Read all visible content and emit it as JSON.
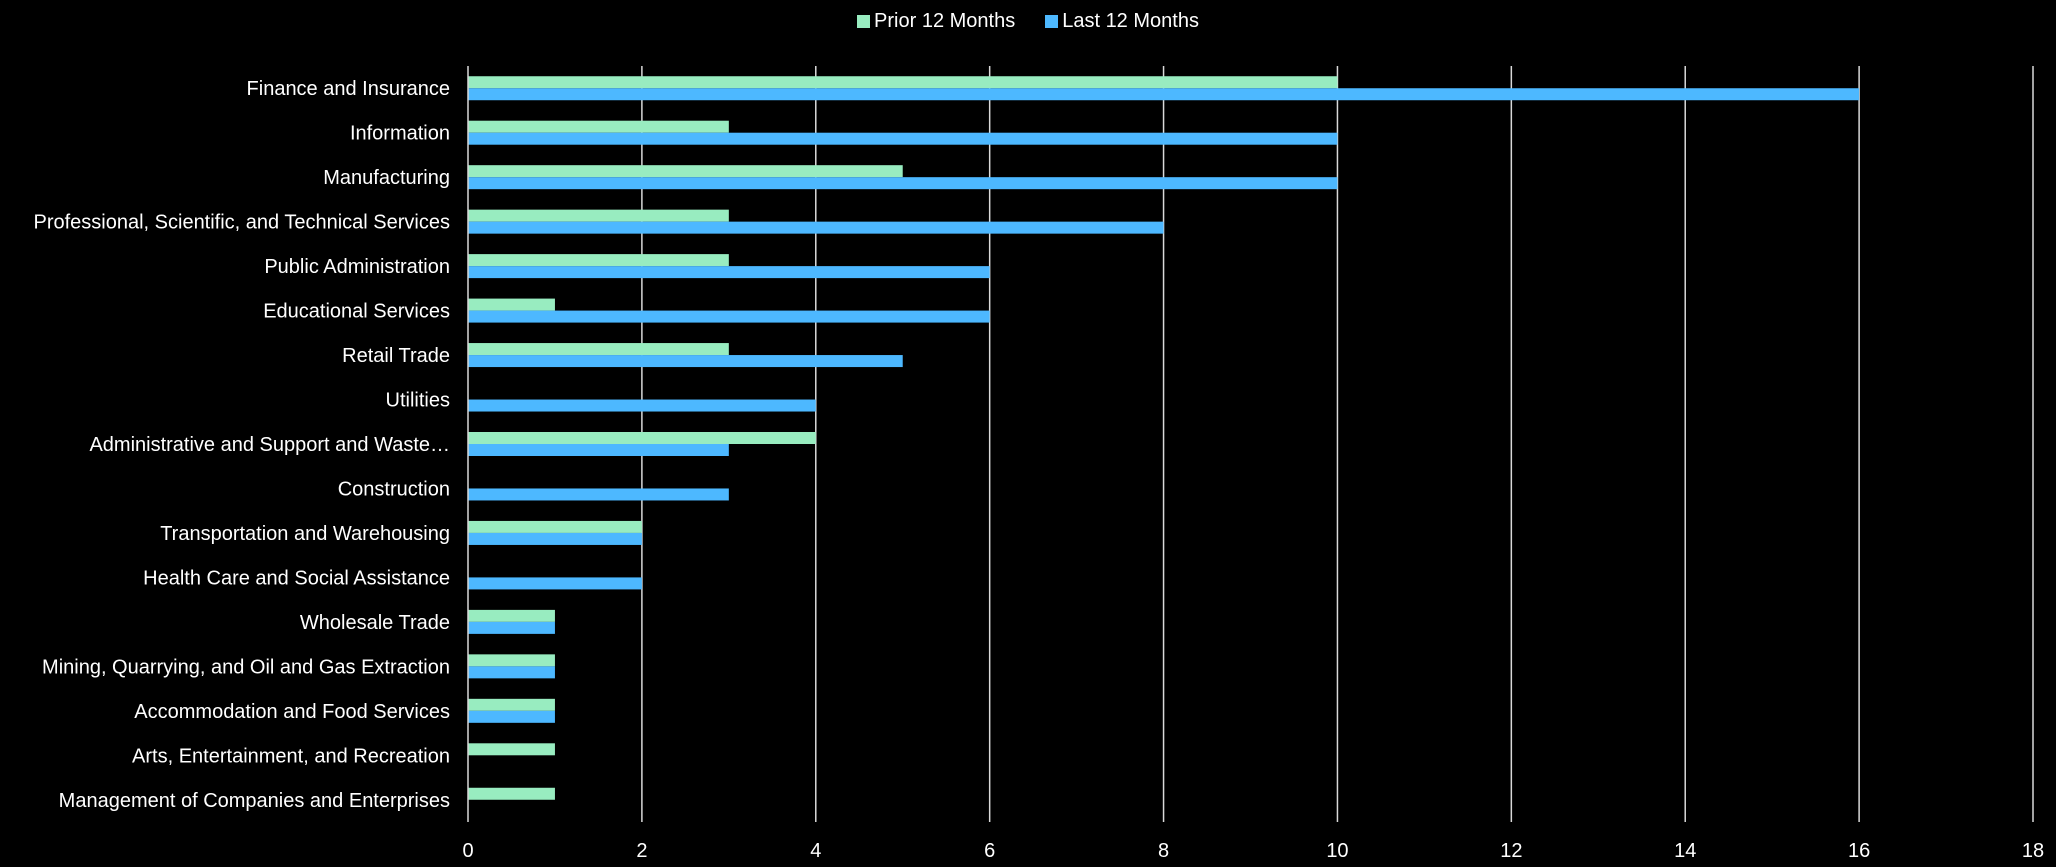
{
  "chart_data": {
    "type": "bar",
    "orientation": "horizontal",
    "categories": [
      "Finance and Insurance",
      "Information",
      "Manufacturing",
      "Professional, Scientific, and Technical Services",
      "Public Administration",
      "Educational Services",
      "Retail Trade",
      "Utilities",
      "Administrative and Support and Waste…",
      "Construction",
      "Transportation and Warehousing",
      "Health Care and Social Assistance",
      "Wholesale Trade",
      "Mining, Quarrying, and Oil and Gas Extraction",
      "Accommodation and Food Services",
      "Arts, Entertainment, and Recreation",
      "Management of Companies and Enterprises"
    ],
    "series": [
      {
        "name": "Prior 12 Months",
        "color": "#98ecc0",
        "values": [
          10,
          3,
          5,
          3,
          3,
          1,
          3,
          0,
          4,
          0,
          2,
          0,
          1,
          1,
          1,
          1,
          1
        ]
      },
      {
        "name": "Last 12 Months",
        "color": "#4db8ff",
        "values": [
          16,
          10,
          10,
          8,
          6,
          6,
          5,
          4,
          3,
          3,
          2,
          2,
          1,
          1,
          1,
          0,
          0
        ]
      }
    ],
    "xlim": [
      0,
      18
    ],
    "xticks": [
      0,
      2,
      4,
      6,
      8,
      10,
      12,
      14,
      16,
      18
    ],
    "grid": true,
    "legend": "top-center",
    "title": "",
    "xlabel": "",
    "ylabel": ""
  }
}
